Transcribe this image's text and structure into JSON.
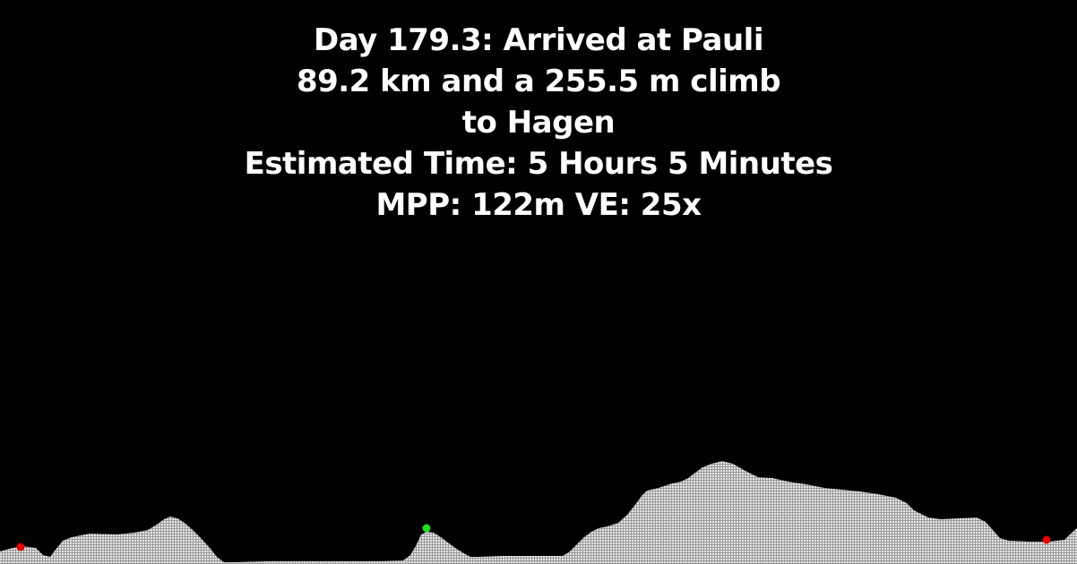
{
  "header": {
    "line1": "Day 179.3: Arrived at Pauli",
    "line2": "89.2 km and a 255.5 m climb",
    "line3": "to Hagen",
    "line4": "Estimated Time: 5 Hours 5 Minutes",
    "line5": "MPP: 122m VE: 25x"
  },
  "colors": {
    "background": "#000000",
    "text": "#ffffff",
    "terrain": "#d8d8d8",
    "marker_endpoints": "#e00000",
    "marker_current": "#22dd22"
  },
  "markers": [
    {
      "name": "start-marker",
      "type": "endpoint"
    },
    {
      "name": "current-position-marker",
      "type": "current"
    },
    {
      "name": "end-marker",
      "type": "endpoint"
    }
  ]
}
